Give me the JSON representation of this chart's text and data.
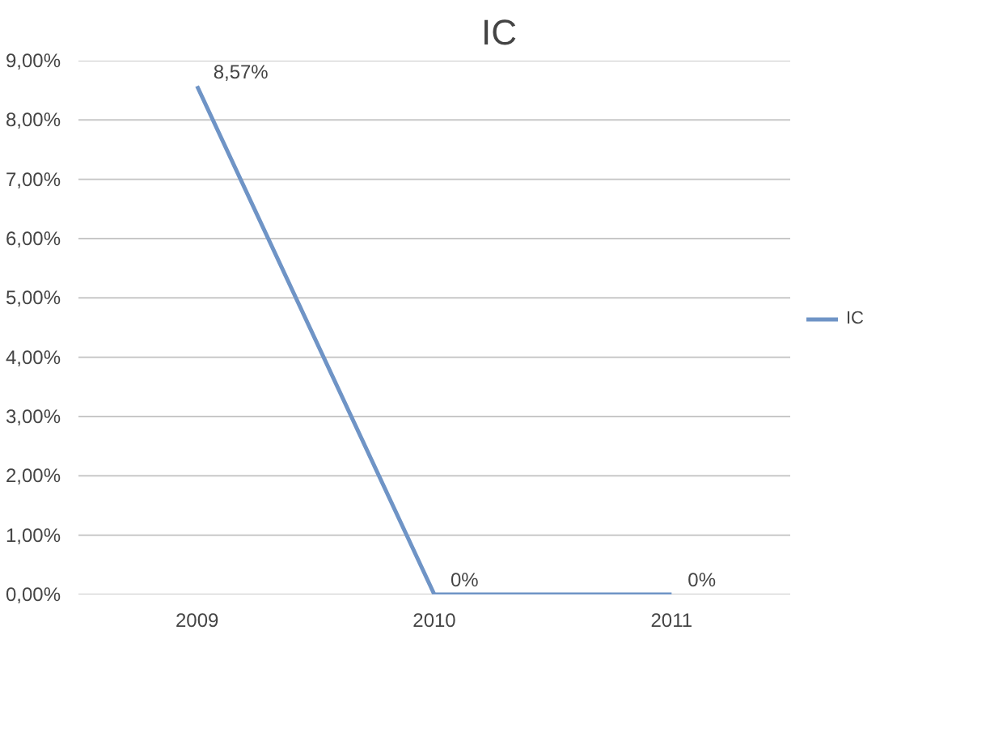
{
  "chart_data": {
    "type": "line",
    "title": "IC",
    "categories": [
      "2009",
      "2010",
      "2011"
    ],
    "series": [
      {
        "name": "IC",
        "color": "#6f94c6",
        "values": [
          8.57,
          0,
          0
        ],
        "value_labels": [
          "8,57%",
          "0%",
          "0%"
        ]
      }
    ],
    "ylim": [
      0,
      9
    ],
    "yticks": [
      {
        "value": 0,
        "label": "0,00%"
      },
      {
        "value": 1,
        "label": "1,00%"
      },
      {
        "value": 2,
        "label": "2,00%"
      },
      {
        "value": 3,
        "label": "3,00%"
      },
      {
        "value": 4,
        "label": "4,00%"
      },
      {
        "value": 5,
        "label": "5,00%"
      },
      {
        "value": 6,
        "label": "6,00%"
      },
      {
        "value": 7,
        "label": "7,00%"
      },
      {
        "value": 8,
        "label": "8,00%"
      },
      {
        "value": 9,
        "label": "9,00%"
      }
    ],
    "grid": "y",
    "legend": "right",
    "marker": "none",
    "line_style": "solid"
  }
}
